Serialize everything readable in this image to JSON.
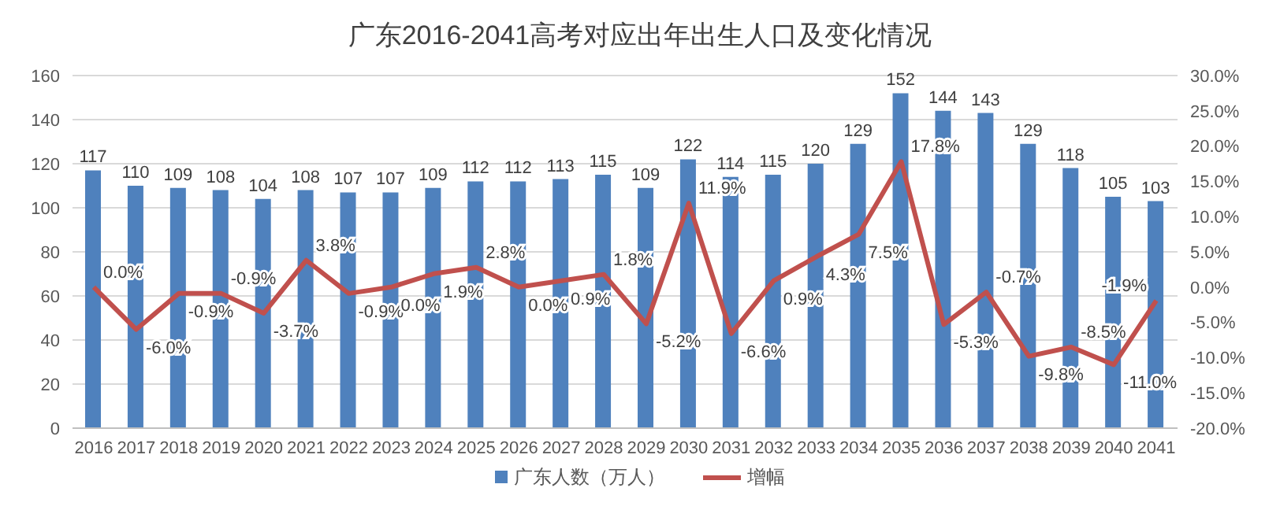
{
  "chart_data": {
    "type": "bar",
    "title": "广东2016-2041高考对应出年出生人口及变化情况",
    "categories": [
      "2016",
      "2017",
      "2018",
      "2019",
      "2020",
      "2021",
      "2022",
      "2023",
      "2024",
      "2025",
      "2026",
      "2027",
      "2028",
      "2029",
      "2030",
      "2031",
      "2032",
      "2033",
      "2034",
      "2035",
      "2036",
      "2037",
      "2038",
      "2039",
      "2040",
      "2041"
    ],
    "series": [
      {
        "name": "广东人数（万人）",
        "color": "#4f81bd",
        "values": [
          117,
          110,
          109,
          108,
          104,
          108,
          107,
          107,
          109,
          112,
          112,
          113,
          115,
          109,
          122,
          114,
          115,
          120,
          129,
          152,
          144,
          143,
          129,
          118,
          105,
          103
        ],
        "value_labels": [
          "117",
          "110",
          "109",
          "108",
          "104",
          "108",
          "107",
          "107",
          "109",
          "112",
          "112",
          "113",
          "115",
          "109",
          "122",
          "114",
          "115",
          "120",
          "129",
          "152",
          "144",
          "143",
          "129",
          "118",
          "105",
          "103"
        ]
      },
      {
        "name": "增幅",
        "type": "line",
        "axis": "y2",
        "color": "#c0504d",
        "values": [
          0.0,
          -6.0,
          -0.9,
          -0.9,
          -3.7,
          3.8,
          -0.9,
          0.0,
          1.9,
          2.8,
          0.0,
          0.9,
          1.8,
          -5.2,
          11.9,
          -6.6,
          0.9,
          4.3,
          7.5,
          17.8,
          -5.3,
          -0.7,
          -9.8,
          -8.5,
          -11.0,
          -1.9
        ],
        "value_labels": [
          "0.0%",
          "-6.0%",
          "-0.9%",
          "-0.9%",
          "-3.7%",
          "3.8%",
          "-0.9%",
          "0.0%",
          "1.9%",
          "2.8%",
          "0.0%",
          "0.9%",
          "1.8%",
          "-5.2%",
          "11.9%",
          "-6.6%",
          "0.9%",
          "4.3%",
          "7.5%",
          "17.8%",
          "-5.3%",
          "-0.7%",
          "-9.8%",
          "-8.5%",
          "-11.0%",
          "-1.9%"
        ]
      }
    ],
    "ylim": [
      0,
      160
    ],
    "yticks": [
      0,
      20,
      40,
      60,
      80,
      100,
      120,
      140,
      160
    ],
    "y2lim": [
      -20,
      30
    ],
    "y2ticks": [
      {
        "value": -20,
        "label": "-20.0%"
      },
      {
        "value": -15,
        "label": "-15.0%"
      },
      {
        "value": -10,
        "label": "-10.0%"
      },
      {
        "value": -5,
        "label": "-5.0%"
      },
      {
        "value": 0,
        "label": "0.0%"
      },
      {
        "value": 5,
        "label": "5.0%"
      },
      {
        "value": 10,
        "label": "10.0%"
      },
      {
        "value": 15,
        "label": "15.0%"
      },
      {
        "value": 20,
        "label": "20.0%"
      },
      {
        "value": 25,
        "label": "25.0%"
      },
      {
        "value": 30,
        "label": "30.0%"
      }
    ],
    "grid": "y",
    "legend": "bottom",
    "marker": "none",
    "line_style": "solid"
  }
}
